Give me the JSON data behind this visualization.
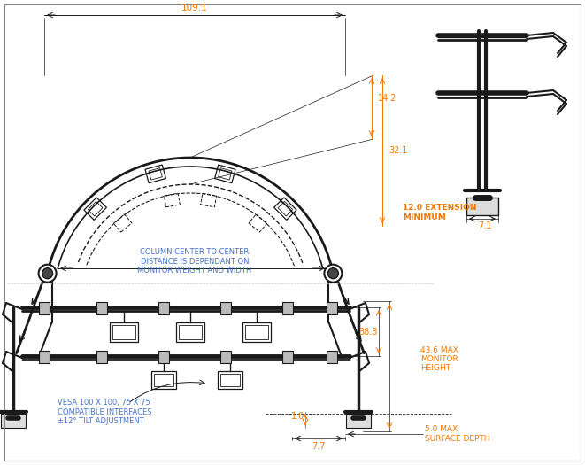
{
  "bg_color": "#ffffff",
  "line_color": "#1a1a1a",
  "dim_color": "#f07800",
  "text_color_blue": "#4472c4",
  "dimensions": {
    "width_top": "109.1",
    "dim_14_2": "14.2",
    "dim_32_1": "32.1",
    "dim_12_ext": "12.0 EXTENSION\nMINIMUM",
    "dim_7_1": "7.1",
    "dim_43_6": "43.6 MAX\nMONITOR\nHEIGHT",
    "dim_38_8": "38.8",
    "dim_1_0": "1.0",
    "dim_7_7": "7.7",
    "dim_5_0": "5.0 MAX\nSURFACE DEPTH"
  },
  "annotations": {
    "column_center": "COLUMN CENTER TO CENTER\nDISTANCE IS DEPENDANT ON\nMONITOR WEIGHT AND WIDTH",
    "vesa": "VESA 100 X 100, 75 X 75\nCOMPATIBLE INTERFACES\n±12° TILT ADJUSTMENT"
  }
}
